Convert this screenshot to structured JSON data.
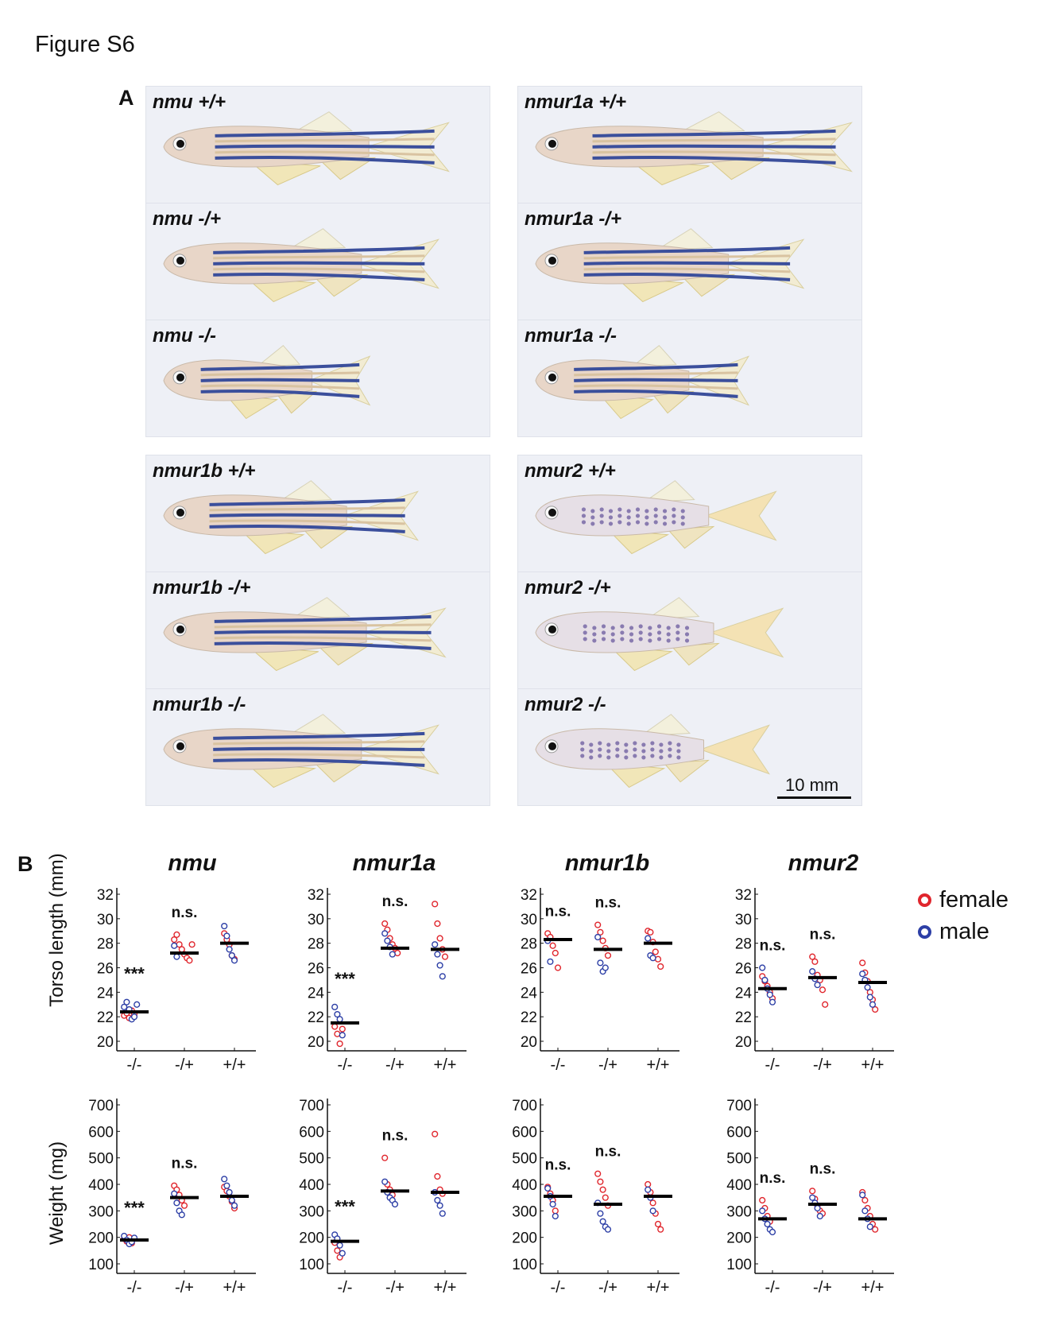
{
  "figure_title": "Figure S6",
  "panel_a_label": "A",
  "panel_b_label": "B",
  "photos": [
    {
      "label": "nmu +/+",
      "kind": "striped"
    },
    {
      "label": "nmu -/+",
      "kind": "striped"
    },
    {
      "label": "nmu -/-",
      "kind": "striped"
    },
    {
      "label": "nmur1a +/+",
      "kind": "striped"
    },
    {
      "label": "nmur1a -/+",
      "kind": "striped"
    },
    {
      "label": "nmur1a -/-",
      "kind": "striped"
    },
    {
      "label": "nmur1b +/+",
      "kind": "striped"
    },
    {
      "label": "nmur1b -/+",
      "kind": "striped"
    },
    {
      "label": "nmur1b -/-",
      "kind": "striped"
    },
    {
      "label": "nmur2 +/+",
      "kind": "spotted"
    },
    {
      "label": "nmur2 -/+",
      "kind": "spotted"
    },
    {
      "label": "nmur2 -/-",
      "kind": "spotted"
    }
  ],
  "scale_bar": "10 mm",
  "genes": [
    "nmu",
    "nmur1a",
    "nmur1b",
    "nmur2"
  ],
  "legend": [
    {
      "label": "female",
      "color": "#e0262d"
    },
    {
      "label": "male",
      "color": "#2d3fa6"
    }
  ],
  "colors": {
    "female": "#e0262d",
    "male": "#2d3fa6",
    "mean": "#000000"
  },
  "chart_data": [
    {
      "type": "scatter",
      "gene": "nmu",
      "ylabel": "Torso length (mm)",
      "ylim": [
        20,
        32
      ],
      "yticks": [
        20,
        22,
        24,
        26,
        28,
        30,
        32
      ],
      "categories": [
        "-/-",
        "-/+",
        "+/+"
      ],
      "groups": [
        {
          "cat": "-/-",
          "mean": 22.4,
          "annotation": "***",
          "female": [
            22.1,
            22.3,
            21.9,
            22.5,
            22.2
          ],
          "male": [
            22.8,
            23.2,
            22.6,
            21.8,
            22.0,
            23.0
          ]
        },
        {
          "cat": "-/+",
          "mean": 27.2,
          "annotation": "n.s.",
          "female": [
            28.3,
            28.7,
            27.9,
            27.5,
            27.1,
            26.8,
            26.6,
            27.9
          ],
          "male": [
            27.8,
            26.9
          ]
        },
        {
          "cat": "+/+",
          "mean": 28.0,
          "annotation": "",
          "female": [
            28.8,
            28.3,
            27.9,
            27.0,
            26.7
          ],
          "male": [
            29.4,
            28.6,
            27.5,
            27.0,
            26.6
          ]
        }
      ]
    },
    {
      "type": "scatter",
      "gene": "nmur1a",
      "ylabel": "",
      "ylim": [
        20,
        32
      ],
      "yticks": [
        20,
        22,
        24,
        26,
        28,
        30,
        32
      ],
      "categories": [
        "-/-",
        "-/+",
        "+/+"
      ],
      "groups": [
        {
          "cat": "-/-",
          "mean": 21.5,
          "annotation": "***",
          "female": [
            21.2,
            20.6,
            19.8,
            21.0
          ],
          "male": [
            22.8,
            22.2,
            21.8,
            20.5
          ]
        },
        {
          "cat": "-/+",
          "mean": 27.6,
          "annotation": "n.s.",
          "female": [
            29.6,
            29.1,
            28.4,
            27.9,
            27.6,
            27.2
          ],
          "male": [
            28.8,
            28.2,
            27.7,
            27.1
          ]
        },
        {
          "cat": "+/+",
          "mean": 27.5,
          "annotation": "",
          "female": [
            31.2,
            29.6,
            28.4,
            27.5,
            26.9
          ],
          "male": [
            27.9,
            27.1,
            26.2,
            25.3
          ]
        }
      ]
    },
    {
      "type": "scatter",
      "gene": "nmur1b",
      "ylabel": "",
      "ylim": [
        20,
        32
      ],
      "yticks": [
        20,
        22,
        24,
        26,
        28,
        30,
        32
      ],
      "categories": [
        "-/-",
        "-/+",
        "+/+"
      ],
      "groups": [
        {
          "cat": "-/-",
          "mean": 28.3,
          "annotation": "n.s.",
          "female": [
            28.8,
            28.5,
            27.8,
            27.2,
            26.0
          ],
          "male": [
            28.2,
            26.5
          ]
        },
        {
          "cat": "-/+",
          "mean": 27.5,
          "annotation": "n.s.",
          "female": [
            29.5,
            28.9,
            28.2,
            27.6,
            27.0
          ],
          "male": [
            28.5,
            26.4,
            25.7,
            26.0
          ]
        },
        {
          "cat": "+/+",
          "mean": 28.0,
          "annotation": "",
          "female": [
            29.0,
            28.9,
            28.1,
            27.3,
            26.7,
            26.1
          ],
          "male": [
            28.4,
            27.0,
            26.8
          ]
        }
      ]
    },
    {
      "type": "scatter",
      "gene": "nmur2",
      "ylabel": "",
      "ylim": [
        20,
        32
      ],
      "yticks": [
        20,
        22,
        24,
        26,
        28,
        30,
        32
      ],
      "categories": [
        "-/-",
        "-/+",
        "+/+"
      ],
      "groups": [
        {
          "cat": "-/-",
          "mean": 24.3,
          "annotation": "n.s.",
          "female": [
            25.3,
            24.9,
            24.5,
            24.0,
            23.5
          ],
          "male": [
            26.0,
            25.0,
            24.3,
            23.8,
            23.2
          ]
        },
        {
          "cat": "-/+",
          "mean": 25.2,
          "annotation": "n.s.",
          "female": [
            26.9,
            26.5,
            25.4,
            25.0,
            24.2,
            23.0
          ],
          "male": [
            25.7,
            25.1,
            24.6
          ]
        },
        {
          "cat": "+/+",
          "mean": 24.8,
          "annotation": "",
          "female": [
            26.4,
            25.6,
            24.9,
            24.0,
            23.4,
            22.6
          ],
          "male": [
            25.5,
            25.0,
            24.4,
            23.6,
            23.0
          ]
        }
      ]
    },
    {
      "type": "scatter",
      "gene": "nmu",
      "ylabel": "Weight (mg)",
      "ylim": [
        100,
        700
      ],
      "yticks": [
        100,
        200,
        300,
        400,
        500,
        600,
        700
      ],
      "categories": [
        "-/-",
        "-/+",
        "+/+"
      ],
      "groups": [
        {
          "cat": "-/-",
          "mean": 190,
          "annotation": "***",
          "female": [
            195,
            185,
            200,
            178
          ],
          "male": [
            205,
            190,
            175,
            183,
            198
          ]
        },
        {
          "cat": "-/+",
          "mean": 350,
          "annotation": "n.s.",
          "female": [
            395,
            380,
            360,
            340,
            320
          ],
          "male": [
            365,
            330,
            300,
            285
          ]
        },
        {
          "cat": "+/+",
          "mean": 355,
          "annotation": "",
          "female": [
            390,
            375,
            355,
            335,
            310
          ],
          "male": [
            420,
            395,
            370,
            340,
            320
          ]
        }
      ]
    },
    {
      "type": "scatter",
      "gene": "nmur1a",
      "ylabel": "",
      "ylim": [
        100,
        700
      ],
      "yticks": [
        100,
        200,
        300,
        400,
        500,
        600,
        700
      ],
      "categories": [
        "-/-",
        "-/+",
        "+/+"
      ],
      "groups": [
        {
          "cat": "-/-",
          "mean": 185,
          "annotation": "***",
          "female": [
            180,
            150,
            125
          ],
          "male": [
            210,
            195,
            170,
            140
          ]
        },
        {
          "cat": "-/+",
          "mean": 375,
          "annotation": "n.s.",
          "female": [
            500,
            400,
            380,
            360
          ],
          "male": [
            410,
            370,
            350,
            340,
            325
          ]
        },
        {
          "cat": "+/+",
          "mean": 370,
          "annotation": "",
          "female": [
            590,
            430,
            380,
            365
          ],
          "male": [
            370,
            340,
            320,
            290
          ]
        }
      ]
    },
    {
      "type": "scatter",
      "gene": "nmur1b",
      "ylabel": "",
      "ylim": [
        100,
        700
      ],
      "yticks": [
        100,
        200,
        300,
        400,
        500,
        600,
        700
      ],
      "categories": [
        "-/-",
        "-/+",
        "+/+"
      ],
      "groups": [
        {
          "cat": "-/-",
          "mean": 355,
          "annotation": "n.s.",
          "female": [
            390,
            365,
            340,
            300
          ],
          "male": [
            385,
            355,
            325,
            280
          ]
        },
        {
          "cat": "-/+",
          "mean": 325,
          "annotation": "n.s.",
          "female": [
            440,
            410,
            380,
            350,
            320
          ],
          "male": [
            330,
            290,
            260,
            240,
            230
          ]
        },
        {
          "cat": "+/+",
          "mean": 355,
          "annotation": "",
          "female": [
            400,
            370,
            330,
            290,
            250,
            230
          ],
          "male": [
            380,
            350,
            300
          ]
        }
      ]
    },
    {
      "type": "scatter",
      "gene": "nmur2",
      "ylabel": "",
      "ylim": [
        100,
        700
      ],
      "yticks": [
        100,
        200,
        300,
        400,
        500,
        600,
        700
      ],
      "categories": [
        "-/-",
        "-/+",
        "+/+"
      ],
      "groups": [
        {
          "cat": "-/-",
          "mean": 270,
          "annotation": "n.s.",
          "female": [
            340,
            310,
            280,
            260
          ],
          "male": [
            300,
            270,
            250,
            230,
            220
          ]
        },
        {
          "cat": "-/+",
          "mean": 325,
          "annotation": "n.s.",
          "female": [
            375,
            345,
            320,
            300,
            290
          ],
          "male": [
            350,
            330,
            310,
            280
          ]
        },
        {
          "cat": "+/+",
          "mean": 270,
          "annotation": "",
          "female": [
            370,
            340,
            310,
            280,
            250,
            230
          ],
          "male": [
            360,
            300,
            270,
            240
          ]
        }
      ]
    }
  ]
}
